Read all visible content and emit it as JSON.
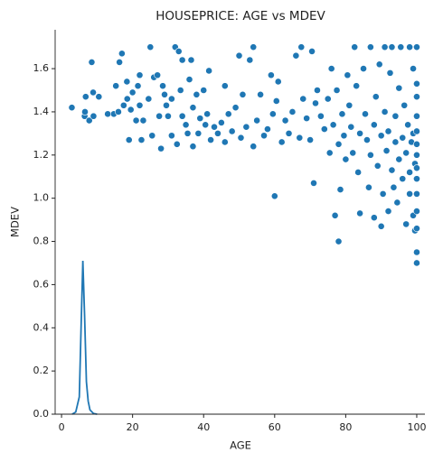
{
  "chart_data": {
    "type": "scatter",
    "title": "HOUSEPRICE: AGE vs MDEV",
    "x_label": "AGE",
    "y_label": "MDEV",
    "xlim": [
      -1.8,
      102.3
    ],
    "ylim": [
      0,
      1.78
    ],
    "xticks": [
      0,
      20,
      40,
      60,
      80,
      100
    ],
    "yticks": [
      {
        "value": 0,
        "label": "0.0"
      },
      {
        "value": 0.2,
        "label": "0.2"
      },
      {
        "value": 0.4,
        "label": "0.4"
      },
      {
        "value": 0.6,
        "label": "0.6"
      },
      {
        "value": 0.8,
        "label": "0.8"
      },
      {
        "value": 1.0,
        "label": "1.0"
      },
      {
        "value": 1.2,
        "label": "1.2"
      },
      {
        "value": 1.4,
        "label": "1.4"
      },
      {
        "value": 1.6,
        "label": "1.6"
      }
    ],
    "series": [
      {
        "type": "scatter",
        "color": "#1f77b4",
        "x": [
          2.9,
          6.5,
          6.6,
          7.8,
          6.8,
          8.5,
          9,
          8.9,
          10.5,
          13,
          14.7,
          15.3,
          16,
          16.3,
          17,
          17.5,
          18.4,
          18.5,
          19,
          19.5,
          20,
          21,
          21.5,
          22,
          22,
          22.5,
          23,
          24.5,
          25,
          25.5,
          26,
          27,
          27.5,
          28,
          28.5,
          29,
          29.5,
          30,
          31,
          31,
          32,
          32.5,
          33,
          33.5,
          34,
          34,
          35,
          35.5,
          36,
          36.5,
          37,
          37,
          38,
          38.5,
          39,
          40,
          40.5,
          41,
          41.5,
          42,
          43,
          44,
          45,
          46,
          46,
          47,
          48,
          49,
          50,
          50.5,
          51,
          52,
          53,
          54,
          54,
          55,
          56,
          57,
          58,
          59,
          59.5,
          60,
          60.5,
          61,
          62,
          63,
          64,
          65,
          66,
          67,
          67.5,
          68,
          69,
          70,
          70.5,
          71,
          71.5,
          72,
          73,
          74,
          75,
          75.5,
          76,
          76.5,
          77,
          77.5,
          78,
          78,
          78.5,
          79,
          79.5,
          80,
          80.5,
          81,
          81.5,
          82,
          82.5,
          83,
          83.5,
          84,
          84,
          85,
          85.5,
          86,
          86.5,
          87,
          87,
          88,
          88,
          88.5,
          89,
          89.5,
          90,
          90,
          90.5,
          91,
          91,
          91.5,
          92,
          92,
          92.5,
          93,
          93,
          93.5,
          94,
          94,
          94.5,
          95,
          95,
          95.5,
          96,
          96,
          96.5,
          97,
          97,
          97.5,
          98,
          98,
          98,
          98.5,
          99,
          99,
          99,
          99.5,
          99.5,
          100,
          100,
          100,
          100,
          100,
          100,
          100,
          100,
          100,
          100,
          100,
          100,
          100,
          100
        ],
        "values": [
          1.42,
          1.38,
          1.4,
          1.36,
          1.47,
          1.63,
          1.38,
          1.49,
          1.47,
          1.39,
          1.39,
          1.52,
          1.4,
          1.63,
          1.67,
          1.43,
          1.54,
          1.46,
          1.27,
          1.41,
          1.49,
          1.36,
          1.52,
          1.57,
          1.43,
          1.27,
          1.36,
          1.46,
          1.7,
          1.29,
          1.56,
          1.57,
          1.38,
          1.23,
          1.52,
          1.48,
          1.43,
          1.38,
          1.46,
          1.29,
          1.7,
          1.25,
          1.68,
          1.5,
          1.38,
          1.64,
          1.34,
          1.3,
          1.55,
          1.64,
          1.24,
          1.42,
          1.48,
          1.3,
          1.37,
          1.5,
          1.34,
          1.39,
          1.59,
          1.27,
          1.33,
          1.3,
          1.35,
          1.26,
          1.52,
          1.39,
          1.31,
          1.42,
          1.66,
          1.28,
          1.48,
          1.33,
          1.64,
          1.7,
          1.24,
          1.36,
          1.48,
          1.29,
          1.32,
          1.57,
          1.39,
          1.01,
          1.45,
          1.54,
          1.26,
          1.36,
          1.3,
          1.4,
          1.66,
          1.28,
          1.7,
          1.46,
          1.37,
          1.27,
          1.68,
          1.07,
          1.44,
          1.5,
          1.38,
          1.32,
          1.46,
          1.21,
          1.6,
          1.34,
          0.92,
          1.5,
          0.8,
          1.25,
          1.04,
          1.39,
          1.29,
          1.18,
          1.57,
          1.43,
          1.33,
          1.21,
          1.7,
          1.52,
          1.12,
          0.93,
          1.3,
          1.6,
          1.39,
          1.27,
          1.05,
          1.7,
          1.2,
          0.91,
          1.34,
          1.47,
          1.15,
          1.62,
          0.87,
          1.29,
          1.02,
          1.7,
          1.4,
          1.22,
          0.94,
          1.31,
          1.58,
          1.13,
          1.7,
          1.05,
          1.26,
          1.38,
          0.98,
          1.18,
          1.51,
          1.7,
          1.09,
          1.28,
          1.43,
          0.88,
          1.21,
          1.34,
          1.12,
          1.7,
          1.02,
          1.26,
          0.92,
          1.3,
          1.6,
          1.16,
          0.85,
          0.7,
          0.75,
          0.86,
          0.94,
          1.02,
          1.09,
          1.14,
          1.2,
          1.25,
          1.31,
          1.38,
          1.47,
          1.53,
          1.7
        ]
      },
      {
        "type": "line",
        "color": "#1f77b4",
        "x": [
          3,
          4,
          5,
          5.5,
          6,
          6.5,
          7,
          7.5,
          8,
          9,
          10
        ],
        "values": [
          0,
          0.01,
          0.08,
          0.4,
          0.71,
          0.45,
          0.15,
          0.06,
          0.02,
          0.003,
          0
        ]
      }
    ]
  }
}
